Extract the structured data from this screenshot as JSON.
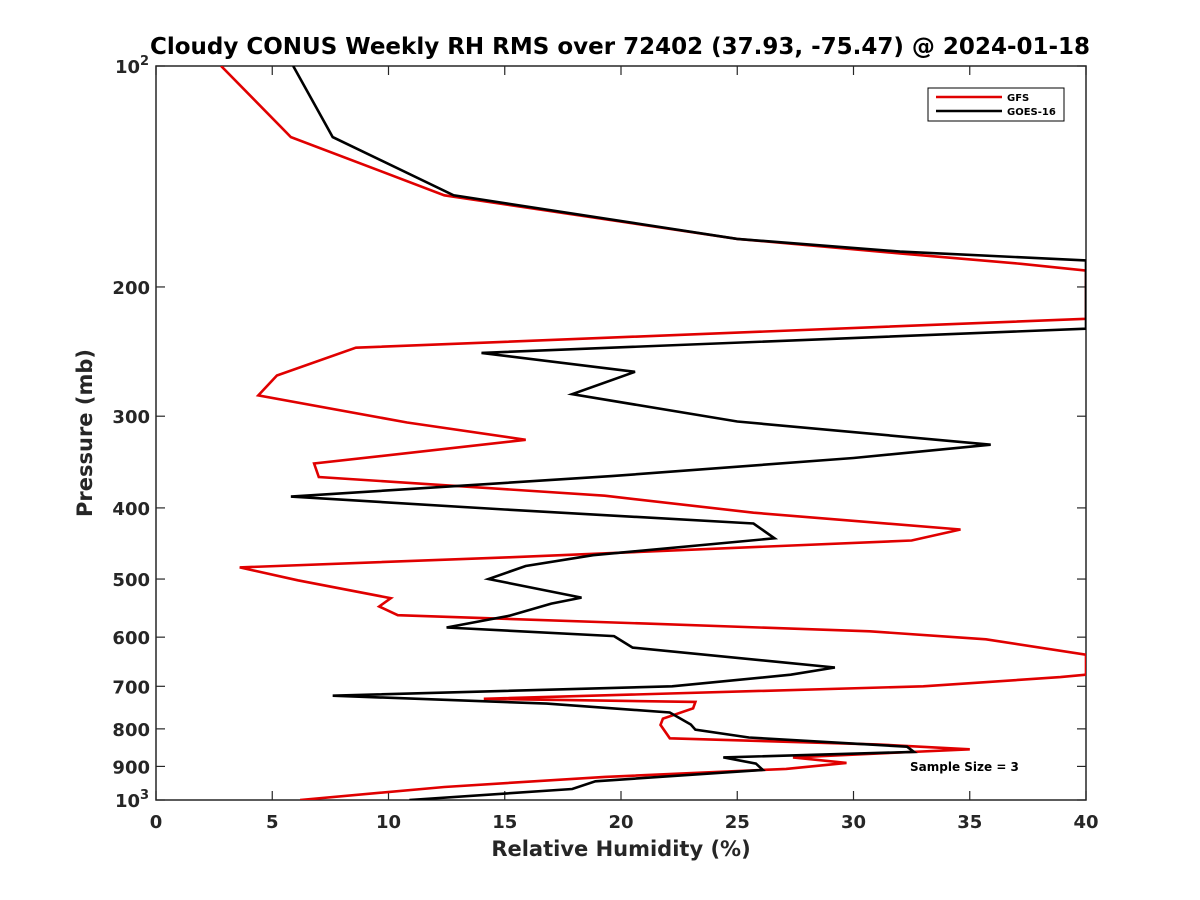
{
  "chart_data": {
    "type": "line",
    "title": "Cloudy CONUS Weekly RH RMS over 72402 (37.93, -75.47) @ 2024-01-18",
    "xlabel": "Relative Humidity (%)",
    "ylabel": "Pressure (mb)",
    "xlim": [
      0,
      40
    ],
    "ylim": [
      100,
      1000
    ],
    "y_scale": "log",
    "y_reversed": true,
    "x_ticks": [
      0,
      5,
      10,
      15,
      20,
      25,
      30,
      35,
      40
    ],
    "x_tick_labels": [
      "0",
      "5",
      "10",
      "15",
      "20",
      "25",
      "30",
      "35",
      "40"
    ],
    "y_ticks": [
      {
        "value": 100,
        "base": "10",
        "exp": "2"
      },
      {
        "value": 200,
        "label": "200"
      },
      {
        "value": 300,
        "label": "300"
      },
      {
        "value": 400,
        "label": "400"
      },
      {
        "value": 500,
        "label": "500"
      },
      {
        "value": 600,
        "label": "600"
      },
      {
        "value": 700,
        "label": "700"
      },
      {
        "value": 800,
        "label": "800"
      },
      {
        "value": 900,
        "label": "900"
      },
      {
        "value": 1000,
        "base": "10",
        "exp": "3"
      }
    ],
    "grid": false,
    "legend_position": "top-right",
    "annotation": "Sample Size = 3",
    "series": [
      {
        "name": "GFS",
        "color": "#e00000",
        "points": [
          [
            2.8,
            100
          ],
          [
            5.8,
            125
          ],
          [
            12.4,
            150
          ],
          [
            25.0,
            172
          ],
          [
            32.0,
            180
          ],
          [
            37.2,
            186
          ],
          [
            40,
            190
          ],
          [
            40,
            221
          ],
          [
            8.6,
            242
          ],
          [
            5.2,
            264
          ],
          [
            4.4,
            281
          ],
          [
            10.8,
            306
          ],
          [
            15.9,
            323
          ],
          [
            6.8,
            348
          ],
          [
            7.0,
            363
          ],
          [
            19.3,
            385
          ],
          [
            25.7,
            406
          ],
          [
            34.6,
            428
          ],
          [
            32.5,
            443
          ],
          [
            15.2,
            467
          ],
          [
            3.6,
            482
          ],
          [
            6.1,
            502
          ],
          [
            10.1,
            531
          ],
          [
            9.6,
            545
          ],
          [
            10.4,
            560
          ],
          [
            21.1,
            575
          ],
          [
            30.7,
            589
          ],
          [
            35.7,
            604
          ],
          [
            40,
            634
          ],
          [
            40,
            675
          ],
          [
            38.9,
            680
          ],
          [
            33.0,
            700
          ],
          [
            14.1,
            728
          ],
          [
            23.2,
            735
          ],
          [
            23.1,
            750
          ],
          [
            21.8,
            775
          ],
          [
            21.7,
            790
          ],
          [
            22.1,
            824
          ],
          [
            31.0,
            840
          ],
          [
            35.0,
            853
          ],
          [
            27.4,
            875
          ],
          [
            29.7,
            890
          ],
          [
            27.1,
            907
          ],
          [
            19.3,
            930
          ],
          [
            12.4,
            960
          ],
          [
            6.2,
            1000
          ]
        ]
      },
      {
        "name": "GOES-16",
        "color": "#000000",
        "points": [
          [
            5.9,
            100
          ],
          [
            7.6,
            125
          ],
          [
            12.8,
            150
          ],
          [
            25.0,
            172
          ],
          [
            32.0,
            179
          ],
          [
            40,
            184
          ],
          [
            40,
            186
          ],
          [
            40,
            221
          ],
          [
            40,
            228
          ],
          [
            14.0,
            246
          ],
          [
            20.6,
            261
          ],
          [
            17.9,
            280
          ],
          [
            25.0,
            305
          ],
          [
            35.9,
            328
          ],
          [
            30.0,
            342
          ],
          [
            19.6,
            362
          ],
          [
            5.8,
            386
          ],
          [
            15.0,
            402
          ],
          [
            25.7,
            420
          ],
          [
            26.6,
            440
          ],
          [
            18.8,
            464
          ],
          [
            15.9,
            480
          ],
          [
            14.3,
            500
          ],
          [
            18.3,
            530
          ],
          [
            17.0,
            540
          ],
          [
            15.2,
            561
          ],
          [
            12.5,
            582
          ],
          [
            19.7,
            598
          ],
          [
            20.5,
            620
          ],
          [
            27.1,
            650
          ],
          [
            29.2,
            660
          ],
          [
            27.3,
            675
          ],
          [
            22.2,
            700
          ],
          [
            7.6,
            721
          ],
          [
            16.8,
            739
          ],
          [
            22.1,
            760
          ],
          [
            23.0,
            789
          ],
          [
            23.2,
            802
          ],
          [
            25.5,
            822
          ],
          [
            32.3,
            846
          ],
          [
            32.6,
            860
          ],
          [
            24.4,
            875
          ],
          [
            25.8,
            892
          ],
          [
            26.1,
            910
          ],
          [
            18.9,
            943
          ],
          [
            17.9,
            966
          ],
          [
            10.9,
            1000
          ]
        ]
      }
    ]
  }
}
